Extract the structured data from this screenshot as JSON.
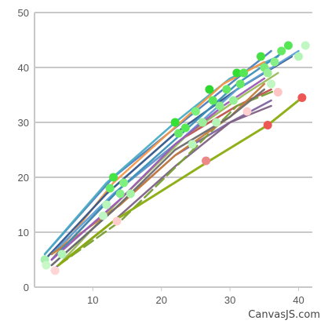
{
  "chart_data": {
    "type": "line",
    "title": "",
    "xlabel": "",
    "ylabel": "",
    "xlim": [
      1.5,
      42
    ],
    "ylim": [
      0,
      50
    ],
    "x_ticks": [
      "10",
      "20",
      "30",
      "40"
    ],
    "y_ticks": [
      "0",
      "10",
      "20",
      "30",
      "40",
      "50"
    ],
    "grid": "horizontal",
    "legend": "none",
    "credit": "CanvasJS.com",
    "colors": {
      "grid": "#c8c8c8",
      "axis": "#c8c8c8",
      "tick_label": "#555555"
    },
    "series": [
      {
        "color": "#4f81bc",
        "dash": false,
        "points": [
          [
            3,
            6
          ],
          [
            13,
            20
          ],
          [
            22,
            29
          ],
          [
            30,
            37
          ],
          [
            36,
            43
          ]
        ]
      },
      {
        "color": "#c0504e",
        "dash": false,
        "points": [
          [
            4,
            5
          ],
          [
            14,
            18
          ],
          [
            23,
            27
          ],
          [
            31,
            33
          ],
          [
            36,
            36
          ]
        ]
      },
      {
        "color": "#9bbb58",
        "dash": false,
        "points": [
          [
            5,
            4
          ],
          [
            14,
            16
          ],
          [
            24,
            28
          ],
          [
            32,
            35
          ],
          [
            37,
            39
          ]
        ]
      },
      {
        "color": "#8064a1",
        "dash": false,
        "points": [
          [
            4,
            4
          ],
          [
            13,
            14
          ],
          [
            22,
            24
          ],
          [
            30,
            30
          ],
          [
            36,
            34
          ]
        ]
      },
      {
        "color": "#4aacc5",
        "dash": false,
        "points": [
          [
            3,
            6
          ],
          [
            12,
            19
          ],
          [
            22,
            30
          ],
          [
            30,
            38
          ],
          [
            37,
            42
          ]
        ]
      },
      {
        "color": "#f79647",
        "dash": false,
        "points": [
          [
            4,
            5
          ],
          [
            13,
            19
          ],
          [
            21,
            28
          ],
          [
            29,
            37
          ],
          [
            35,
            41
          ]
        ]
      },
      {
        "color": "#33558b",
        "dash": false,
        "points": [
          [
            3,
            5
          ],
          [
            12,
            17
          ],
          [
            22,
            28
          ],
          [
            31,
            36
          ],
          [
            39,
            42
          ]
        ]
      },
      {
        "color": "#7f6084",
        "dash": false,
        "points": [
          [
            4,
            3
          ],
          [
            13,
            12
          ],
          [
            22,
            22
          ],
          [
            30,
            30
          ],
          [
            36,
            33
          ]
        ]
      },
      {
        "color": "#77a033",
        "dash": true,
        "points": [
          [
            5,
            4
          ],
          [
            14,
            12
          ],
          [
            23,
            23
          ],
          [
            31,
            33
          ],
          [
            37,
            36
          ]
        ]
      },
      {
        "color": "#8aac0e",
        "dash": false,
        "points": [
          [
            5,
            4
          ],
          [
            13,
            12
          ],
          [
            27,
            23
          ],
          [
            35.5,
            29.5
          ],
          [
            40.5,
            34.5
          ]
        ]
      },
      {
        "color": "#5fa0d6",
        "dash": false,
        "points": [
          [
            4,
            6
          ],
          [
            13,
            17
          ],
          [
            23,
            27
          ],
          [
            31,
            36
          ],
          [
            40,
            43
          ]
        ]
      },
      {
        "color": "#c47b3c",
        "dash": false,
        "points": [
          [
            4,
            6
          ],
          [
            14,
            15
          ],
          [
            22,
            24
          ],
          [
            30,
            31
          ],
          [
            35,
            37
          ]
        ]
      },
      {
        "color": "#6d6d6d",
        "dash": false,
        "points": [
          [
            4,
            4
          ],
          [
            13,
            14
          ],
          [
            22,
            25
          ],
          [
            30,
            31
          ],
          [
            35,
            36
          ]
        ]
      },
      {
        "color": "#3a8fb7",
        "dash": false,
        "points": [
          [
            4,
            5
          ],
          [
            14,
            18
          ],
          [
            23,
            28
          ],
          [
            31,
            37
          ],
          [
            38,
            43
          ]
        ]
      },
      {
        "color": "#9b59b6",
        "dash": false,
        "points": [
          [
            4,
            5
          ],
          [
            14,
            16
          ],
          [
            22,
            26
          ],
          [
            29,
            33
          ],
          [
            35,
            38
          ]
        ]
      }
    ],
    "highlight_points": [
      {
        "x": 3,
        "y": 5,
        "color": "#a8f0b0"
      },
      {
        "x": 3.2,
        "y": 4,
        "color": "#c8f8c8"
      },
      {
        "x": 4.5,
        "y": 3,
        "color": "#ffd5d5"
      },
      {
        "x": 5.5,
        "y": 6,
        "color": "#b0f4b8"
      },
      {
        "x": 11.5,
        "y": 13,
        "color": "#c0f6c6"
      },
      {
        "x": 12.5,
        "y": 18,
        "color": "#66ee66"
      },
      {
        "x": 13,
        "y": 20,
        "color": "#44e444"
      },
      {
        "x": 13.5,
        "y": 12,
        "color": "#ffcccc"
      },
      {
        "x": 14,
        "y": 17,
        "color": "#88ee88"
      },
      {
        "x": 14.5,
        "y": 19,
        "color": "#7df07d"
      },
      {
        "x": 15.5,
        "y": 17,
        "color": "#a4f2a4"
      },
      {
        "x": 12,
        "y": 15,
        "color": "#b9f6bc"
      },
      {
        "x": 22,
        "y": 30,
        "color": "#33e033"
      },
      {
        "x": 22.5,
        "y": 28,
        "color": "#66ea66"
      },
      {
        "x": 23.5,
        "y": 29,
        "color": "#55e855"
      },
      {
        "x": 24.5,
        "y": 26,
        "color": "#b9f6bc"
      },
      {
        "x": 25,
        "y": 32,
        "color": "#7ef07e"
      },
      {
        "x": 26,
        "y": 30,
        "color": "#99f099"
      },
      {
        "x": 26.5,
        "y": 23,
        "color": "#ee8888"
      },
      {
        "x": 27,
        "y": 36,
        "color": "#2ed82e"
      },
      {
        "x": 27.5,
        "y": 34,
        "color": "#5ae85a"
      },
      {
        "x": 28,
        "y": 30,
        "color": "#b4f4b4"
      },
      {
        "x": 28.5,
        "y": 33,
        "color": "#88ee88"
      },
      {
        "x": 29.5,
        "y": 36,
        "color": "#66ea66"
      },
      {
        "x": 30.5,
        "y": 34,
        "color": "#99f099"
      },
      {
        "x": 31,
        "y": 39,
        "color": "#33de33"
      },
      {
        "x": 31.5,
        "y": 37,
        "color": "#66ea66"
      },
      {
        "x": 32,
        "y": 39,
        "color": "#55e655"
      },
      {
        "x": 32.5,
        "y": 32,
        "color": "#ffd0d0"
      },
      {
        "x": 34.5,
        "y": 42,
        "color": "#44e044"
      },
      {
        "x": 35,
        "y": 40,
        "color": "#77ec77"
      },
      {
        "x": 35.5,
        "y": 39,
        "color": "#99f099"
      },
      {
        "x": 35.5,
        "y": 29.5,
        "color": "#ee5555"
      },
      {
        "x": 36,
        "y": 37,
        "color": "#c2f6c2"
      },
      {
        "x": 36.5,
        "y": 41,
        "color": "#88ee88"
      },
      {
        "x": 37,
        "y": 35.5,
        "color": "#ffc4c4"
      },
      {
        "x": 37.5,
        "y": 43,
        "color": "#66ea66"
      },
      {
        "x": 38.5,
        "y": 44,
        "color": "#55e655"
      },
      {
        "x": 40,
        "y": 42,
        "color": "#b4f4b4"
      },
      {
        "x": 40.5,
        "y": 34.5,
        "color": "#ee5555"
      },
      {
        "x": 41,
        "y": 44,
        "color": "#c2f6c2"
      }
    ]
  }
}
